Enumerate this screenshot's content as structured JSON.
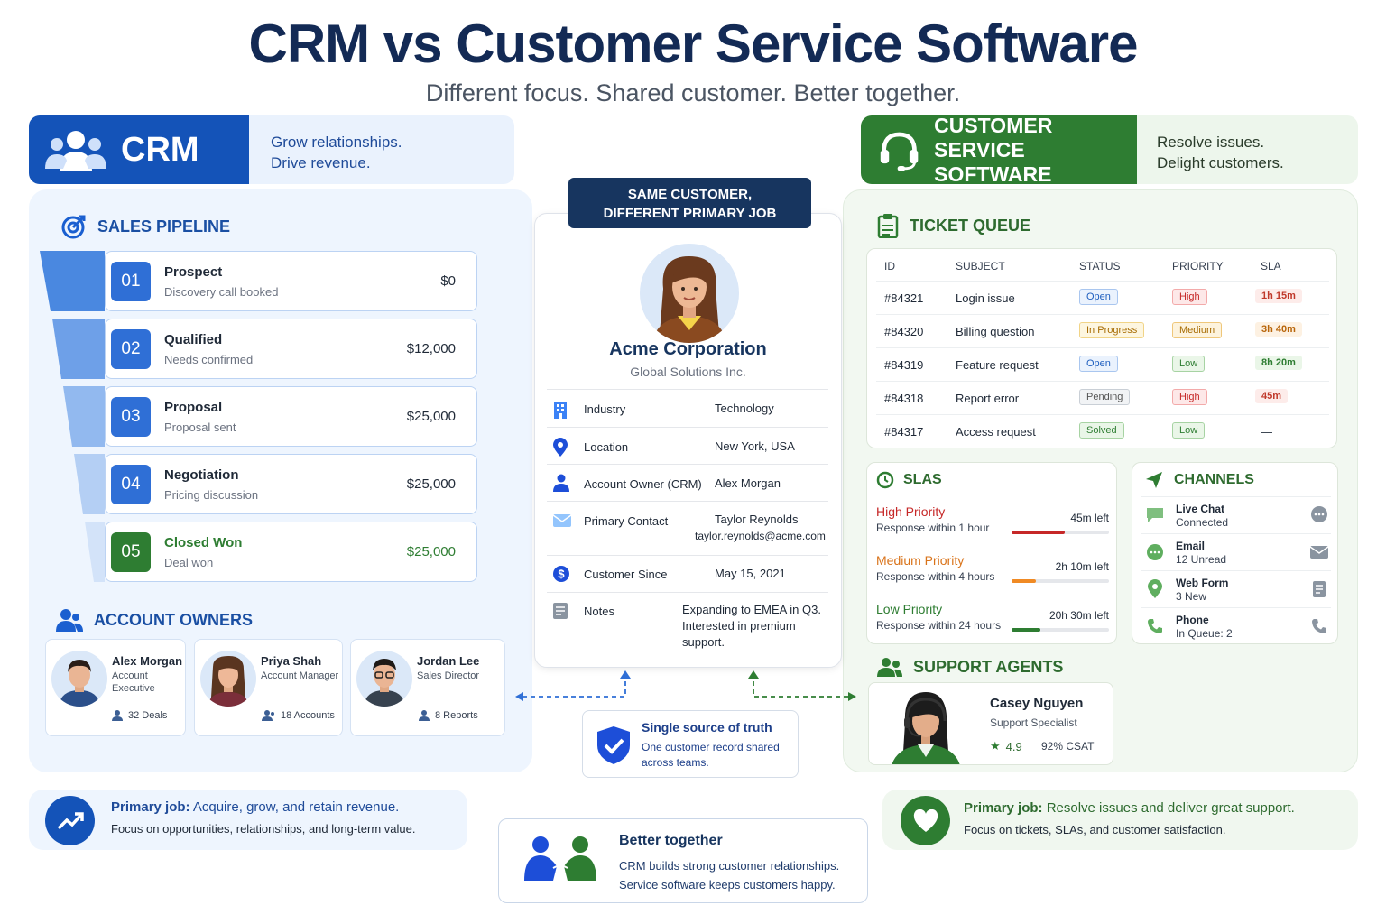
{
  "header": {
    "title": "CRM vs Customer Service Software",
    "subtitle": "Different focus. Shared customer. Better together."
  },
  "crm": {
    "title": "CRM",
    "tagline": [
      "Grow relationships.",
      "Drive revenue."
    ],
    "pipeline": {
      "title": "SALES PIPELINE",
      "stages": [
        {
          "num": "01",
          "name": "Prospect",
          "desc": "Discovery call booked",
          "value": "$0"
        },
        {
          "num": "02",
          "name": "Qualified",
          "desc": "Needs confirmed",
          "value": "$12,000"
        },
        {
          "num": "03",
          "name": "Proposal",
          "desc": "Proposal sent",
          "value": "$25,000"
        },
        {
          "num": "04",
          "name": "Negotiation",
          "desc": "Pricing discussion",
          "value": "$25,000"
        },
        {
          "num": "05",
          "name": "Closed Won",
          "desc": "Deal won",
          "value": "$25,000"
        }
      ]
    },
    "owners": {
      "title": "ACCOUNT OWNERS",
      "items": [
        {
          "name": "Alex Morgan",
          "role": "Account Executive",
          "stat": "32 Deals"
        },
        {
          "name": "Priya Shah",
          "role": "Account Manager",
          "stat": "18 Accounts"
        },
        {
          "name": "Jordan Lee",
          "role": "Sales Director",
          "stat": "8 Reports"
        }
      ]
    },
    "primary_job": {
      "label": "Primary job:",
      "text": " Acquire, grow, and retain revenue.",
      "desc": "Focus on opportunities, relationships, and long-term value."
    }
  },
  "middle": {
    "banner": [
      "SAME CUSTOMER,",
      "DIFFERENT PRIMARY JOB"
    ],
    "customer": {
      "name": "Acme Corporation",
      "sub": "Global Solutions Inc."
    },
    "fields": [
      {
        "label": "Industry",
        "value": "Technology",
        "icon": "building-icon"
      },
      {
        "label": "Location",
        "value": "New York, USA",
        "icon": "location-pin-icon"
      },
      {
        "label": "Account Owner (CRM)",
        "value": "Alex Morgan",
        "icon": "person-icon"
      },
      {
        "label": "Primary Contact",
        "value": "Taylor Reynolds",
        "value2": "taylor.reynolds@acme.com",
        "icon": "mail-icon"
      },
      {
        "label": "Customer Since",
        "value": "May 15, 2021",
        "icon": "dollar-icon"
      },
      {
        "label": "Notes",
        "value": "Expanding to EMEA in Q3.",
        "value2": "Interested in premium",
        "value3": "support.",
        "icon": "notes-icon"
      }
    ],
    "truth": {
      "title": "Single source of truth",
      "desc": [
        "One customer record shared",
        "across teams."
      ]
    },
    "better": {
      "title": "Better together",
      "lines": [
        "CRM builds strong customer relationships.",
        "Service software keeps customers happy."
      ]
    }
  },
  "cs": {
    "title": [
      "CUSTOMER SERVICE",
      "SOFTWARE"
    ],
    "tagline": [
      "Resolve issues.",
      "Delight customers."
    ],
    "queue": {
      "title": "TICKET QUEUE",
      "columns": [
        "ID",
        "SUBJECT",
        "STATUS",
        "PRIORITY",
        "SLA"
      ],
      "rows": [
        {
          "id": "#84321",
          "subject": "Login issue",
          "status": "Open",
          "priority": "High",
          "sla": "1h 15m"
        },
        {
          "id": "#84320",
          "subject": "Billing question",
          "status": "In Progress",
          "priority": "Medium",
          "sla": "3h 40m"
        },
        {
          "id": "#84319",
          "subject": "Feature request",
          "status": "Open",
          "priority": "Low",
          "sla": "8h 20m"
        },
        {
          "id": "#84318",
          "subject": "Report error",
          "status": "Pending",
          "priority": "High",
          "sla": "45m"
        },
        {
          "id": "#84317",
          "subject": "Access request",
          "status": "Solved",
          "priority": "Low",
          "sla": "—"
        }
      ]
    },
    "slas": {
      "title": "SLAS",
      "items": [
        {
          "name": "High Priority",
          "desc": "Response within 1 hour",
          "left": "45m left",
          "progress": 0.55,
          "color": "#c62828"
        },
        {
          "name": "Medium Priority",
          "desc": "Response within 4 hours",
          "left": "2h 10m left",
          "progress": 0.25,
          "color": "#f08a24"
        },
        {
          "name": "Low Priority",
          "desc": "Response within 24 hours",
          "left": "20h 30m left",
          "progress": 0.3,
          "color": "#2e7d32"
        }
      ]
    },
    "channels": {
      "title": "CHANNELS",
      "items": [
        {
          "name": "Live Chat",
          "sub": "Connected"
        },
        {
          "name": "Email",
          "sub": "12 Unread"
        },
        {
          "name": "Web Form",
          "sub": "3 New"
        },
        {
          "name": "Phone",
          "sub": "In Queue: 2"
        }
      ]
    },
    "agents": {
      "title": "SUPPORT AGENTS",
      "agent": {
        "name": "Casey Nguyen",
        "role": "Support Specialist",
        "rating": "4.9",
        "csat": "92% CSAT"
      }
    },
    "primary_job": {
      "label": "Primary job:",
      "text": " Resolve issues and deliver great support.",
      "desc": "Focus on tickets, SLAs, and customer satisfaction."
    }
  },
  "colors": {
    "crm_blue": "#1453b8",
    "cs_green": "#2e7d32",
    "navy": "#17355f"
  }
}
